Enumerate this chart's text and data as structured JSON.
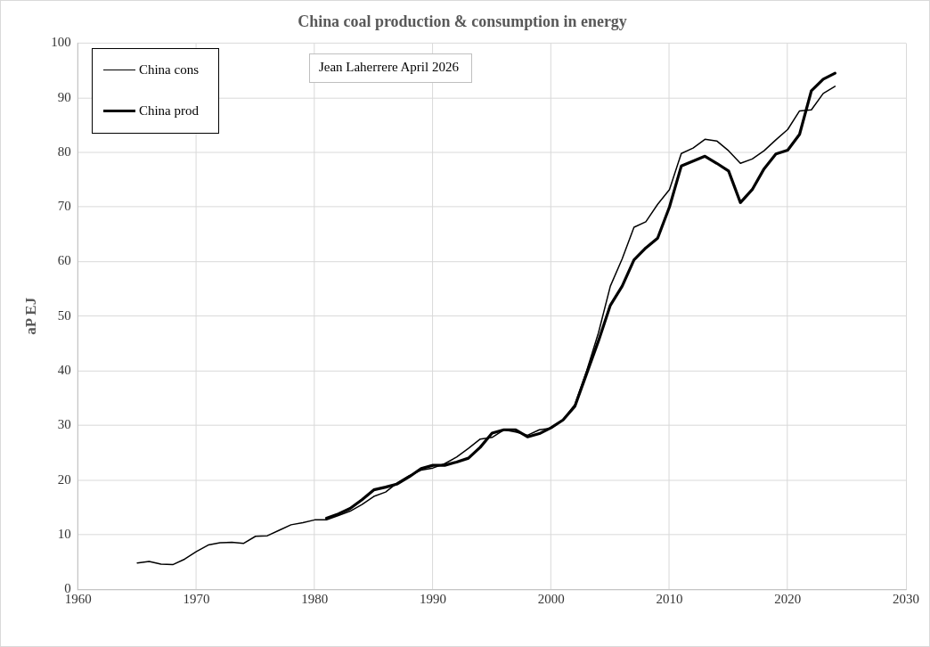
{
  "chart_data": {
    "type": "line",
    "title": "China coal production & consumption in energy",
    "ylabel": "aP EJ",
    "annotations": [
      "Jean Laherrere April 2026"
    ],
    "legend": "top left",
    "grid": true,
    "marker": "none",
    "line_style": "solid",
    "xlim": [
      1960,
      2030
    ],
    "xticks": [
      1960,
      1970,
      1980,
      1990,
      2000,
      2010,
      2020,
      2030
    ],
    "ylim": [
      0,
      100
    ],
    "yticks": [
      0,
      10,
      20,
      30,
      40,
      50,
      60,
      70,
      80,
      90,
      100
    ],
    "series": [
      {
        "name": "China cons",
        "color": "#000000",
        "x": [
          1965,
          1966,
          1967,
          1968,
          1969,
          1970,
          1971,
          1972,
          1973,
          1974,
          1975,
          1976,
          1977,
          1978,
          1979,
          1980,
          1981,
          1982,
          1983,
          1984,
          1985,
          1986,
          1987,
          1988,
          1989,
          1990,
          1991,
          1992,
          1993,
          1994,
          1995,
          1996,
          1997,
          1998,
          1999,
          2000,
          2001,
          2002,
          2003,
          2004,
          2005,
          2006,
          2007,
          2008,
          2009,
          2010,
          2011,
          2012,
          2013,
          2014,
          2015,
          2016,
          2017,
          2018,
          2019,
          2020,
          2021,
          2022,
          2023,
          2024
        ],
        "values": [
          4.8,
          5.1,
          4.6,
          4.5,
          5.5,
          6.9,
          8.1,
          8.5,
          8.6,
          8.4,
          9.7,
          9.8,
          10.8,
          11.8,
          12.2,
          12.7,
          12.7,
          13.5,
          14.3,
          15.5,
          17.0,
          17.8,
          19.5,
          20.8,
          21.8,
          22.2,
          23.0,
          24.2,
          25.8,
          27.5,
          27.8,
          29.2,
          28.8,
          28.2,
          29.2,
          29.5,
          31.0,
          33.8,
          40.0,
          47.0,
          55.5,
          60.5,
          66.3,
          67.3,
          70.5,
          73.2,
          79.8,
          80.8,
          82.4,
          82.1,
          80.3,
          78.0,
          78.8,
          80.3,
          82.3,
          84.2,
          87.6,
          87.8,
          90.8,
          92.1
        ]
      },
      {
        "name": "China prod",
        "color": "#000000",
        "x": [
          1981,
          1982,
          1983,
          1984,
          1985,
          1986,
          1987,
          1988,
          1989,
          1990,
          1991,
          1992,
          1993,
          1994,
          1995,
          1996,
          1997,
          1998,
          1999,
          2000,
          2001,
          2002,
          2003,
          2004,
          2005,
          2006,
          2007,
          2008,
          2009,
          2010,
          2011,
          2012,
          2013,
          2014,
          2015,
          2016,
          2017,
          2018,
          2019,
          2020,
          2021,
          2022,
          2023,
          2024
        ],
        "values": [
          13.0,
          13.8,
          14.8,
          16.4,
          18.2,
          18.7,
          19.3,
          20.6,
          22.1,
          22.7,
          22.7,
          23.3,
          24.0,
          26.0,
          28.6,
          29.2,
          29.2,
          27.9,
          28.5,
          29.6,
          31.0,
          33.5,
          39.5,
          45.5,
          52.0,
          55.5,
          60.3,
          62.5,
          64.3,
          70.0,
          77.5,
          78.4,
          79.3,
          78.0,
          76.6,
          70.8,
          73.2,
          77.0,
          79.7,
          80.4,
          83.3,
          91.3,
          93.4,
          94.5
        ]
      }
    ]
  }
}
